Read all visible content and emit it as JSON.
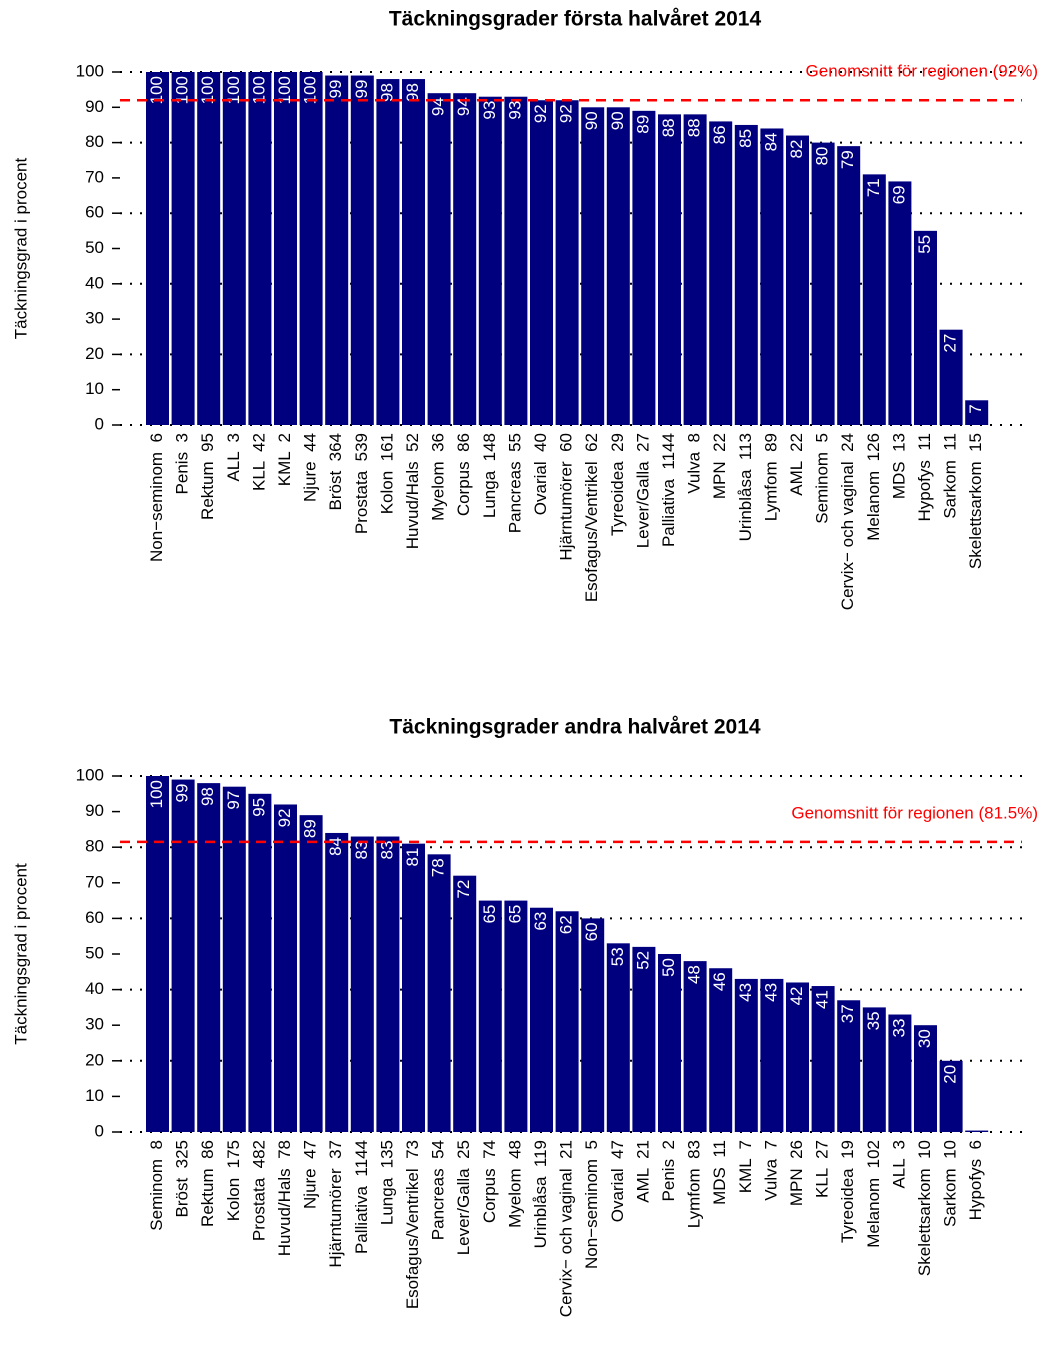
{
  "chart_data": [
    {
      "type": "bar",
      "title": "Täckningsgrader första halvåret 2014",
      "ylabel": "Täckningsgrad i procent",
      "categories": [
        "Non−seminom  6",
        "Penis  3",
        "Rektum  95",
        "ALL  3",
        "KLL  42",
        "KML  2",
        "Njure  44",
        "Bröst  364",
        "Prostata  539",
        "Kolon  161",
        "Huvud/Hals  52",
        "Myelom  36",
        "Corpus  86",
        "Lunga  148",
        "Pancreas  55",
        "Ovarial  40",
        "Hjärntumörer  60",
        "Esofagus/Ventrikel  62",
        "Tyreoidea  29",
        "Lever/Galla  27",
        "Palliativa  1144",
        "Vulva  8",
        "MPN  22",
        "Urinblåsa  113",
        "Lymfom  89",
        "AML  22",
        "Seminom  5",
        "Cervix− och vaginal  24",
        "Melanom  126",
        "MDS  13",
        "Hypofys  11",
        "Sarkom  11",
        "Skelettsarkom  15"
      ],
      "values": [
        100,
        100,
        100,
        100,
        100,
        100,
        100,
        99,
        99,
        98,
        98,
        94,
        94,
        93,
        93,
        92,
        92,
        90,
        90,
        89,
        88,
        88,
        86,
        85,
        84,
        82,
        80,
        79,
        71,
        69,
        55,
        27,
        7
      ],
      "color": "#00007f",
      "ylim": [
        0,
        100
      ],
      "yticks": [
        0,
        10,
        20,
        30,
        40,
        50,
        60,
        70,
        80,
        90,
        100
      ],
      "grid": true,
      "mean": 92,
      "mean_label": "Genomsnitt för regionen (92%)",
      "mean_color": "#ff0000"
    },
    {
      "type": "bar",
      "title": "Täckningsgrader andra halvåret 2014",
      "ylabel": "Täckningsgrad i procent",
      "categories": [
        "Seminom  8",
        "Bröst  325",
        "Rektum  86",
        "Kolon  175",
        "Prostata  482",
        "Huvud/Hals  78",
        "Njure  47",
        "Hjärntumörer  37",
        "Palliativa  1144",
        "Lunga  135",
        "Esofagus/Ventrikel  73",
        "Pancreas  54",
        "Lever/Galla  25",
        "Corpus  74",
        "Myelom  48",
        "Urinblåsa  119",
        "Cervix− och vaginal  21",
        "Non−seminom  5",
        "Ovarial  47",
        "AML  21",
        "Penis  2",
        "Lymfom  83",
        "MDS  11",
        "KML  7",
        "Vulva  7",
        "MPN  26",
        "KLL  27",
        "Tyreoidea  19",
        "Melanom  102",
        "ALL  3",
        "Skelettsarkom  10",
        "Sarkom  10",
        "Hypofys  6"
      ],
      "values": [
        100,
        99,
        98,
        97,
        95,
        92,
        89,
        84,
        83,
        83,
        81,
        78,
        72,
        65,
        65,
        63,
        62,
        60,
        53,
        52,
        50,
        48,
        46,
        43,
        43,
        42,
        41,
        37,
        35,
        33,
        30,
        20,
        0.4
      ],
      "color": "#00007f",
      "ylim": [
        0,
        100
      ],
      "yticks": [
        0,
        10,
        20,
        30,
        40,
        50,
        60,
        70,
        80,
        90,
        100
      ],
      "grid": true,
      "mean": 81.5,
      "mean_label": "Genomsnitt för regionen (81.5%)",
      "mean_color": "#ff0000"
    }
  ]
}
